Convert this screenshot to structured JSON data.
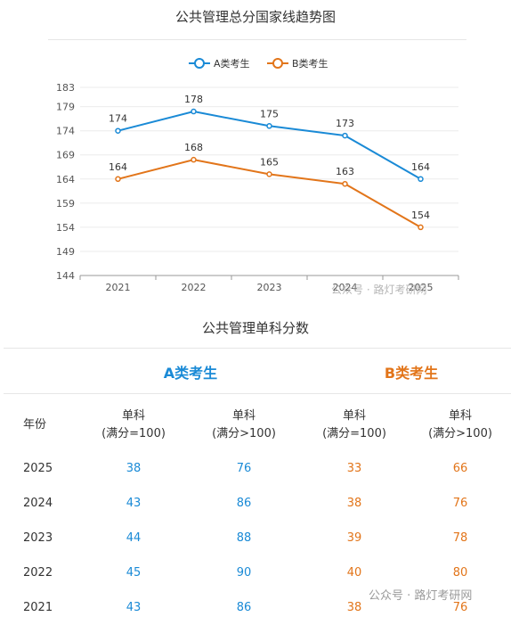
{
  "chart_data": {
    "type": "line",
    "title": "公共管理总分国家线趋势图",
    "categories": [
      "2021",
      "2022",
      "2023",
      "2024",
      "2025"
    ],
    "series": [
      {
        "name": "A类考生",
        "color": "#1a8ad6",
        "values": [
          174,
          178,
          175,
          173,
          164
        ]
      },
      {
        "name": "B类考生",
        "color": "#e2751a",
        "values": [
          164,
          168,
          165,
          163,
          154
        ]
      }
    ],
    "yticks": [
      144,
      149,
      154,
      159,
      164,
      169,
      174,
      179,
      183
    ],
    "ylim": [
      144,
      183
    ],
    "legend_position": "top-center",
    "grid": true
  },
  "watermark_chart": "公众号 · 路灯考研网",
  "watermark_table": "公众号 · 路灯考研网",
  "table": {
    "title": "公共管理单科分数",
    "group_a": "A类考生",
    "group_b": "B类考生",
    "color_a": "#1a8ad6",
    "color_b": "#e2751a",
    "headers": {
      "year": "年份",
      "single": "单科",
      "full_100": "(满分=100)",
      "full_gt100": "(满分>100)"
    },
    "rows": [
      {
        "year": "2025",
        "a100": "38",
        "agt100": "76",
        "b100": "33",
        "bgt100": "66"
      },
      {
        "year": "2024",
        "a100": "43",
        "agt100": "86",
        "b100": "38",
        "bgt100": "76"
      },
      {
        "year": "2023",
        "a100": "44",
        "agt100": "88",
        "b100": "39",
        "bgt100": "78"
      },
      {
        "year": "2022",
        "a100": "45",
        "agt100": "90",
        "b100": "40",
        "bgt100": "80"
      },
      {
        "year": "2021",
        "a100": "43",
        "agt100": "86",
        "b100": "38",
        "bgt100": "76"
      }
    ]
  }
}
